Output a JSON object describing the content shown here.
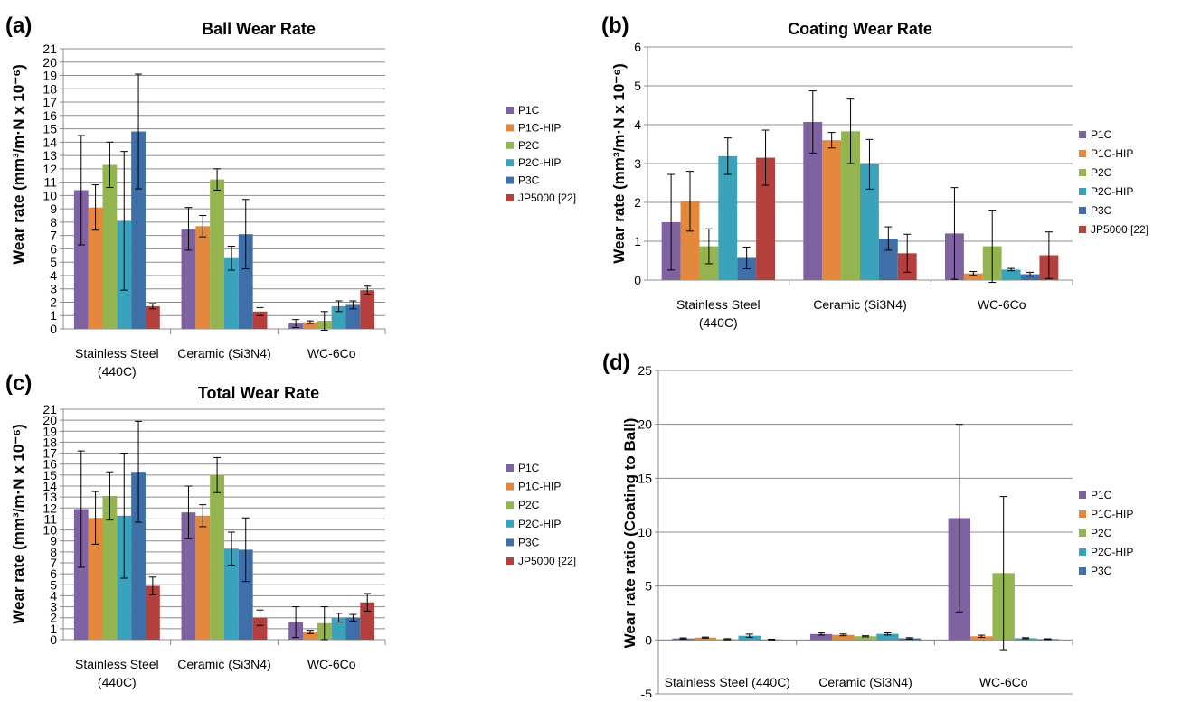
{
  "colors": {
    "P1C": "#7E62A1",
    "P1C-HIP": "#E4883D",
    "P2C": "#93B44E",
    "P2C-HIP": "#3AA2BA",
    "P3C": "#3E6FA8",
    "JP5000 [22]": "#B3403D"
  },
  "chart_data": [
    {
      "panel": "(a)",
      "type": "bar",
      "title": "Ball Wear Rate",
      "ylabel": "Wear rate (mm³/m·N x 10⁻⁶)",
      "xlabel": "",
      "ylim": [
        0,
        21
      ],
      "ytick_step": 1,
      "grid": true,
      "legend": "right",
      "categories": [
        [
          "Stainless Steel",
          "(440C)"
        ],
        [
          "Ceramic (Si3N4)"
        ],
        [
          "WC-6Co"
        ]
      ],
      "series": [
        {
          "name": "P1C",
          "values": [
            10.4,
            7.5,
            0.4
          ],
          "errors": [
            4.1,
            1.6,
            0.3
          ]
        },
        {
          "name": "P1C-HIP",
          "values": [
            9.1,
            7.7,
            0.5
          ],
          "errors": [
            1.7,
            0.8,
            0.1
          ]
        },
        {
          "name": "P2C",
          "values": [
            12.3,
            11.2,
            0.6
          ],
          "errors": [
            1.7,
            0.8,
            0.7
          ]
        },
        {
          "name": "P2C-HIP",
          "values": [
            8.1,
            5.3,
            1.7
          ],
          "errors": [
            5.2,
            0.9,
            0.4
          ]
        },
        {
          "name": "P3C",
          "values": [
            14.8,
            7.1,
            1.8
          ],
          "errors": [
            4.3,
            2.6,
            0.3
          ]
        },
        {
          "name": "JP5000 [22]",
          "values": [
            1.7,
            1.3,
            2.9
          ],
          "errors": [
            0.2,
            0.3,
            0.3
          ]
        }
      ]
    },
    {
      "panel": "(b)",
      "type": "bar",
      "title": "Coating Wear Rate",
      "ylabel": "Wear rate (mm³/m·N x 10⁻⁶)",
      "xlabel": "",
      "ylim": [
        0,
        6
      ],
      "ytick_step": 1,
      "grid": true,
      "legend": "right",
      "categories": [
        [
          "Stainless Steel",
          "(440C)"
        ],
        [
          "Ceramic (Si3N4)"
        ],
        [
          "WC-6Co"
        ]
      ],
      "series": [
        {
          "name": "P1C",
          "values": [
            1.49,
            4.07,
            1.2
          ],
          "errors": [
            1.23,
            0.8,
            1.18
          ]
        },
        {
          "name": "P1C-HIP",
          "values": [
            2.03,
            3.6,
            0.17
          ],
          "errors": [
            0.77,
            0.2,
            0.05
          ]
        },
        {
          "name": "P2C",
          "values": [
            0.87,
            3.83,
            0.87
          ],
          "errors": [
            0.45,
            0.83,
            0.93
          ]
        },
        {
          "name": "P2C-HIP",
          "values": [
            3.19,
            2.98,
            0.27
          ],
          "errors": [
            0.47,
            0.64,
            0.03
          ]
        },
        {
          "name": "P3C",
          "values": [
            0.57,
            1.07,
            0.15
          ],
          "errors": [
            0.28,
            0.3,
            0.05
          ]
        },
        {
          "name": "JP5000 [22]",
          "values": [
            3.15,
            0.69,
            0.64
          ],
          "errors": [
            0.71,
            0.49,
            0.6
          ]
        }
      ]
    },
    {
      "panel": "(c)",
      "type": "bar",
      "title": "Total Wear Rate",
      "ylabel": "Wear rate (mm³/m·N x 10⁻⁶)",
      "xlabel": "",
      "ylim": [
        0,
        21
      ],
      "ytick_step": 1,
      "grid": true,
      "legend": "right",
      "categories": [
        [
          "Stainless Steel",
          "(440C)"
        ],
        [
          "Ceramic (Si3N4)"
        ],
        [
          "WC-6Co"
        ]
      ],
      "series": [
        {
          "name": "P1C",
          "values": [
            11.9,
            11.6,
            1.6
          ],
          "errors": [
            5.3,
            2.4,
            1.4
          ]
        },
        {
          "name": "P1C-HIP",
          "values": [
            11.1,
            11.3,
            0.7
          ],
          "errors": [
            2.4,
            1.0,
            0.15
          ]
        },
        {
          "name": "P2C",
          "values": [
            13.1,
            15.0,
            1.5
          ],
          "errors": [
            2.2,
            1.6,
            1.5
          ]
        },
        {
          "name": "P2C-HIP",
          "values": [
            11.3,
            8.3,
            2.0
          ],
          "errors": [
            5.7,
            1.5,
            0.4
          ]
        },
        {
          "name": "P3C",
          "values": [
            15.3,
            8.2,
            2.0
          ],
          "errors": [
            4.6,
            2.9,
            0.3
          ]
        },
        {
          "name": "JP5000 [22]",
          "values": [
            4.9,
            2.0,
            3.4
          ],
          "errors": [
            0.8,
            0.7,
            0.8
          ]
        }
      ]
    },
    {
      "panel": "(d)",
      "type": "bar",
      "title": "",
      "ylabel": "Wear rate ratio (Coating to Ball)",
      "xlabel": "",
      "ylim": [
        -5,
        25
      ],
      "ytick_step": 5,
      "grid": true,
      "legend": "right",
      "categories": [
        [
          "Stainless Steel (440C)"
        ],
        [
          "Ceramic (Si3N4)"
        ],
        [
          "WC-6Co"
        ]
      ],
      "series": [
        {
          "name": "P1C",
          "values": [
            0.14,
            0.55,
            11.3
          ],
          "errors": [
            0.05,
            0.1,
            8.7
          ]
        },
        {
          "name": "P1C-HIP",
          "values": [
            0.22,
            0.47,
            0.34
          ],
          "errors": [
            0.05,
            0.08,
            0.1
          ]
        },
        {
          "name": "P2C",
          "values": [
            0.07,
            0.34,
            6.2
          ],
          "errors": [
            0.05,
            0.05,
            7.1
          ]
        },
        {
          "name": "P2C-HIP",
          "values": [
            0.39,
            0.56,
            0.16
          ],
          "errors": [
            0.15,
            0.1,
            0.05
          ]
        },
        {
          "name": "P3C",
          "values": [
            0.04,
            0.15,
            0.08
          ],
          "errors": [
            0.03,
            0.06,
            0.03
          ]
        }
      ]
    }
  ]
}
